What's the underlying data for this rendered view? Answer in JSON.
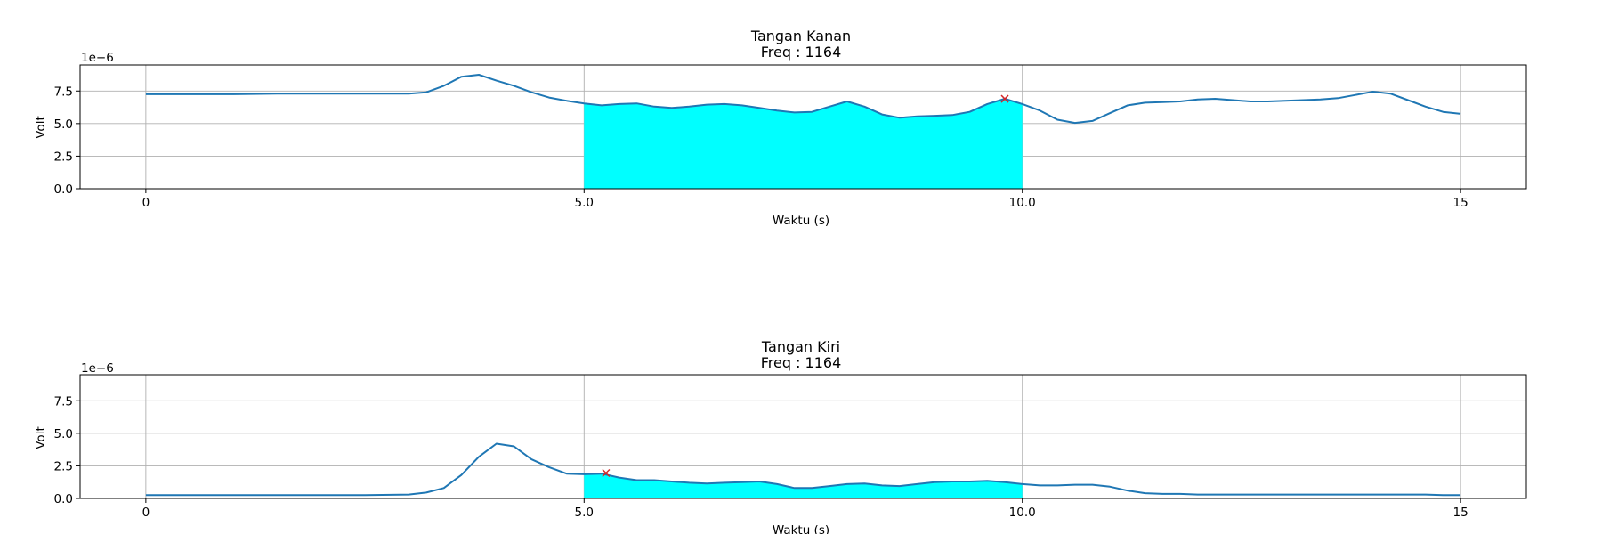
{
  "chart_data": [
    {
      "type": "line",
      "title": "Tangan Kanan\nFreq : 1164",
      "xlabel": "Waktu (s)",
      "ylabel": "Volt",
      "y_offset_label": "1e−6",
      "xlim": [
        -0.75,
        15.75
      ],
      "ylim": [
        0,
        9.5
      ],
      "xticks": [
        0,
        5,
        10,
        15
      ],
      "xtick_labels": [
        "0",
        "5.0",
        "10.0",
        "15"
      ],
      "yticks": [
        0,
        2.5,
        5,
        7.5
      ],
      "ytick_labels": [
        "0.0",
        "2.5",
        "5.0",
        "7.5"
      ],
      "grid": true,
      "line_color": "#1f77b4",
      "fill_color": "#00ffff",
      "fill_range": [
        5,
        10
      ],
      "marker": {
        "x": 9.8,
        "y": 6.9,
        "symbol": "x",
        "color": "#d62728"
      },
      "series": [
        {
          "x": [
            0,
            0.5,
            1,
            1.5,
            2,
            2.5,
            3,
            3.2,
            3.4,
            3.6,
            3.8,
            4,
            4.2,
            4.4,
            4.6,
            4.8,
            5,
            5.2,
            5.4,
            5.6,
            5.8,
            6,
            6.2,
            6.4,
            6.6,
            6.8,
            7,
            7.2,
            7.4,
            7.6,
            7.8,
            8,
            8.2,
            8.4,
            8.6,
            8.8,
            9,
            9.2,
            9.4,
            9.6,
            9.8,
            10,
            10.2,
            10.4,
            10.6,
            10.8,
            11,
            11.2,
            11.4,
            11.6,
            11.8,
            12,
            12.2,
            12.4,
            12.6,
            12.8,
            13,
            13.2,
            13.4,
            13.6,
            13.8,
            14,
            14.2,
            14.4,
            14.6,
            14.8,
            15
          ],
          "y": [
            7.25,
            7.25,
            7.25,
            7.3,
            7.3,
            7.3,
            7.3,
            7.4,
            7.9,
            8.6,
            8.75,
            8.3,
            7.9,
            7.4,
            7.0,
            6.75,
            6.55,
            6.4,
            6.5,
            6.55,
            6.3,
            6.2,
            6.3,
            6.45,
            6.5,
            6.4,
            6.2,
            6.0,
            5.85,
            5.9,
            6.3,
            6.7,
            6.3,
            5.7,
            5.45,
            5.55,
            5.6,
            5.65,
            5.9,
            6.5,
            6.9,
            6.5,
            6.0,
            5.3,
            5.05,
            5.2,
            5.8,
            6.4,
            6.6,
            6.65,
            6.7,
            6.85,
            6.9,
            6.8,
            6.7,
            6.7,
            6.75,
            6.8,
            6.85,
            6.95,
            7.2,
            7.45,
            7.3,
            6.8,
            6.3,
            5.9,
            5.75
          ]
        }
      ]
    },
    {
      "type": "line",
      "title": "Tangan Kiri\nFreq :  1164",
      "xlabel": "Waktu (s)",
      "ylabel": "Volt",
      "y_offset_label": "1e−6",
      "xlim": [
        -0.75,
        15.75
      ],
      "ylim": [
        0,
        9.5
      ],
      "xticks": [
        0,
        5,
        10,
        15
      ],
      "xtick_labels": [
        "0",
        "5.0",
        "10.0",
        "15"
      ],
      "yticks": [
        0,
        2.5,
        5,
        7.5
      ],
      "ytick_labels": [
        "0.0",
        "2.5",
        "5.0",
        "7.5"
      ],
      "grid": true,
      "line_color": "#1f77b4",
      "fill_color": "#00ffff",
      "fill_range": [
        5,
        10
      ],
      "marker": {
        "x": 5.25,
        "y": 1.95,
        "symbol": "x",
        "color": "#d62728"
      },
      "series": [
        {
          "x": [
            0,
            0.5,
            1,
            1.5,
            2,
            2.5,
            3,
            3.2,
            3.4,
            3.6,
            3.8,
            4,
            4.2,
            4.4,
            4.6,
            4.8,
            5,
            5.2,
            5.4,
            5.6,
            5.8,
            6,
            6.2,
            6.4,
            6.6,
            6.8,
            7,
            7.2,
            7.4,
            7.6,
            7.8,
            8,
            8.2,
            8.4,
            8.6,
            8.8,
            9,
            9.2,
            9.4,
            9.6,
            9.8,
            10,
            10.2,
            10.4,
            10.6,
            10.8,
            11,
            11.2,
            11.4,
            11.6,
            11.8,
            12,
            12.2,
            12.4,
            12.6,
            12.8,
            13,
            13.2,
            13.4,
            13.6,
            13.8,
            14,
            14.2,
            14.4,
            14.6,
            14.8,
            15
          ],
          "y": [
            0.25,
            0.25,
            0.25,
            0.25,
            0.25,
            0.25,
            0.3,
            0.45,
            0.8,
            1.8,
            3.2,
            4.2,
            4.0,
            3.0,
            2.4,
            1.9,
            1.85,
            1.9,
            1.6,
            1.4,
            1.4,
            1.3,
            1.2,
            1.15,
            1.2,
            1.25,
            1.3,
            1.1,
            0.8,
            0.8,
            0.95,
            1.1,
            1.15,
            1.0,
            0.95,
            1.1,
            1.25,
            1.3,
            1.3,
            1.35,
            1.25,
            1.1,
            1.0,
            1.0,
            1.05,
            1.05,
            0.9,
            0.6,
            0.4,
            0.35,
            0.35,
            0.3,
            0.3,
            0.3,
            0.3,
            0.3,
            0.3,
            0.3,
            0.3,
            0.3,
            0.3,
            0.3,
            0.3,
            0.3,
            0.3,
            0.25,
            0.25
          ]
        }
      ]
    }
  ]
}
